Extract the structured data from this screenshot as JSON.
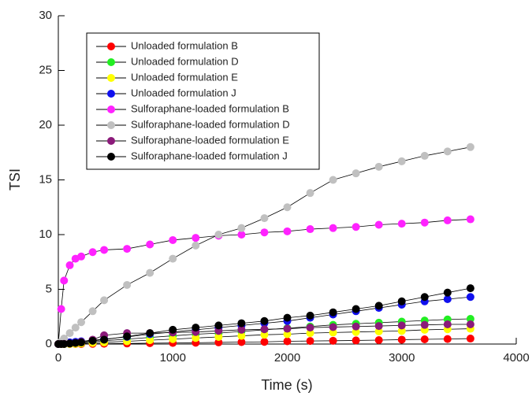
{
  "chart_data": {
    "type": "line",
    "x_label": "Time (s)",
    "y_label": "TSI",
    "x": [
      0,
      25,
      50,
      100,
      150,
      200,
      300,
      400,
      600,
      800,
      1000,
      1200,
      1400,
      1600,
      1800,
      2000,
      2200,
      2400,
      2600,
      2800,
      3000,
      3200,
      3400,
      3600
    ],
    "xlim": [
      0,
      4000
    ],
    "xticks": [
      0,
      1000,
      2000,
      3000,
      4000
    ],
    "ylim": [
      0,
      30
    ],
    "yticks": [
      0,
      5,
      10,
      15,
      20,
      25,
      30
    ],
    "legend": "upper left",
    "series": [
      {
        "name": "Unloaded formulation B",
        "color": "#ff0000",
        "values": [
          0,
          0,
          0,
          0,
          0,
          0,
          0.02,
          0.03,
          0.05,
          0.08,
          0.1,
          0.12,
          0.15,
          0.18,
          0.2,
          0.25,
          0.28,
          0.3,
          0.33,
          0.36,
          0.4,
          0.43,
          0.46,
          0.5
        ]
      },
      {
        "name": "Unloaded formulation D",
        "color": "#22ee22",
        "values": [
          0,
          0,
          0,
          0.02,
          0.05,
          0.1,
          0.2,
          0.3,
          0.45,
          0.6,
          0.75,
          0.9,
          1.0,
          1.15,
          1.3,
          1.45,
          1.6,
          1.75,
          1.85,
          1.95,
          2.05,
          2.15,
          2.25,
          2.3
        ]
      },
      {
        "name": "Unloaded formulation E",
        "color": "#ffff00",
        "values": [
          0,
          0,
          0,
          0,
          0.02,
          0.05,
          0.1,
          0.15,
          0.25,
          0.35,
          0.45,
          0.55,
          0.65,
          0.75,
          0.85,
          0.9,
          1.0,
          1.05,
          1.1,
          1.15,
          1.2,
          1.3,
          1.35,
          1.4
        ]
      },
      {
        "name": "Unloaded formulation J",
        "color": "#1010ee",
        "values": [
          0,
          0.05,
          0.1,
          0.15,
          0.2,
          0.25,
          0.35,
          0.45,
          0.65,
          0.9,
          1.1,
          1.3,
          1.5,
          1.7,
          1.9,
          2.1,
          2.4,
          2.7,
          3.0,
          3.3,
          3.6,
          3.9,
          4.1,
          4.3
        ]
      },
      {
        "name": "Sulforaphane-loaded formulation B",
        "color": "#ff22ff",
        "values": [
          0,
          3.2,
          5.8,
          7.2,
          7.8,
          8.0,
          8.4,
          8.6,
          8.7,
          9.1,
          9.5,
          9.7,
          9.9,
          10.0,
          10.2,
          10.3,
          10.5,
          10.6,
          10.7,
          10.9,
          11.0,
          11.1,
          11.3,
          11.4
        ]
      },
      {
        "name": "Sulforaphane-loaded formulation D",
        "color": "#c0c0c0",
        "values": [
          0,
          0.2,
          0.5,
          1.0,
          1.5,
          2.0,
          3.0,
          4.0,
          5.4,
          6.5,
          7.8,
          9.0,
          10.0,
          10.6,
          11.5,
          12.5,
          13.8,
          15.0,
          15.6,
          16.2,
          16.7,
          17.2,
          17.6,
          18.0
        ]
      },
      {
        "name": "Sulforaphane-loaded formulation E",
        "color": "#8b1a7a",
        "values": [
          0,
          0,
          0.02,
          0.05,
          0.1,
          0.2,
          0.4,
          0.8,
          1.0,
          1.0,
          1.05,
          1.1,
          1.2,
          1.3,
          1.35,
          1.4,
          1.5,
          1.55,
          1.6,
          1.65,
          1.7,
          1.75,
          1.8,
          1.8
        ]
      },
      {
        "name": "Sulforaphane-loaded formulation J",
        "color": "#000000",
        "values": [
          0,
          0,
          0,
          0.05,
          0.1,
          0.15,
          0.3,
          0.4,
          0.7,
          1.0,
          1.3,
          1.5,
          1.7,
          1.9,
          2.1,
          2.4,
          2.6,
          2.9,
          3.2,
          3.5,
          3.9,
          4.3,
          4.7,
          5.1
        ]
      }
    ]
  }
}
